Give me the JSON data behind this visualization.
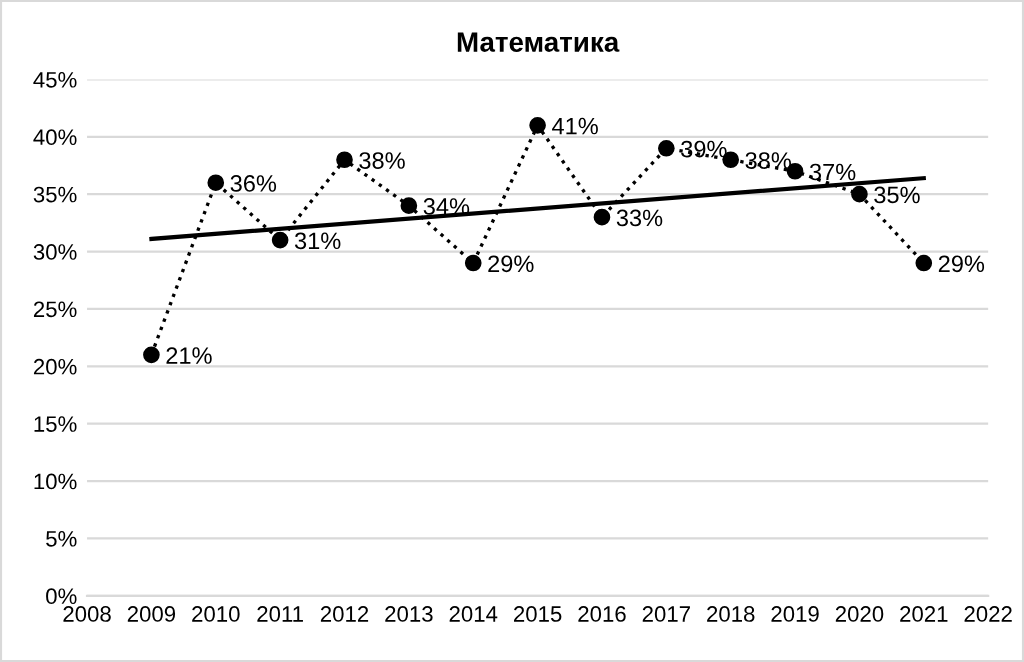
{
  "chart_data": {
    "type": "line",
    "title": "Математика",
    "x": [
      2009,
      2010,
      2011,
      2012,
      2013,
      2014,
      2015,
      2016,
      2017,
      2018,
      2019,
      2020,
      2021
    ],
    "series": [
      {
        "color": "#000000",
        "marker": "circle",
        "line_style": "dotted",
        "values": [
          21,
          36,
          31,
          38,
          34,
          29,
          41,
          33,
          39,
          38,
          37,
          35,
          29
        ],
        "value_labels": [
          "21%",
          "36%",
          "31%",
          "38%",
          "34%",
          "29%",
          "41%",
          "33%",
          "39%",
          "38%",
          "37%",
          "35%",
          "29%"
        ]
      },
      {
        "type": "line",
        "color": "#000000",
        "marker": "none",
        "line_style": "solid",
        "x": [
          2009,
          2021
        ],
        "values": [
          31.1,
          36.4
        ]
      }
    ],
    "xlim": [
      2008,
      2022
    ],
    "xticks": [
      2008,
      2009,
      2010,
      2011,
      2012,
      2013,
      2014,
      2015,
      2016,
      2017,
      2018,
      2019,
      2020,
      2021,
      2022
    ],
    "ylim": [
      0,
      45
    ],
    "yticks": [
      {
        "value": 0,
        "label": "0%"
      },
      {
        "value": 5,
        "label": "5%"
      },
      {
        "value": 10,
        "label": "10%"
      },
      {
        "value": 15,
        "label": "15%"
      },
      {
        "value": 20,
        "label": "20%"
      },
      {
        "value": 25,
        "label": "25%"
      },
      {
        "value": 30,
        "label": "30%"
      },
      {
        "value": 35,
        "label": "35%"
      },
      {
        "value": 40,
        "label": "40%"
      },
      {
        "value": 45,
        "label": "45%"
      }
    ],
    "grid": "y",
    "legend": false
  }
}
